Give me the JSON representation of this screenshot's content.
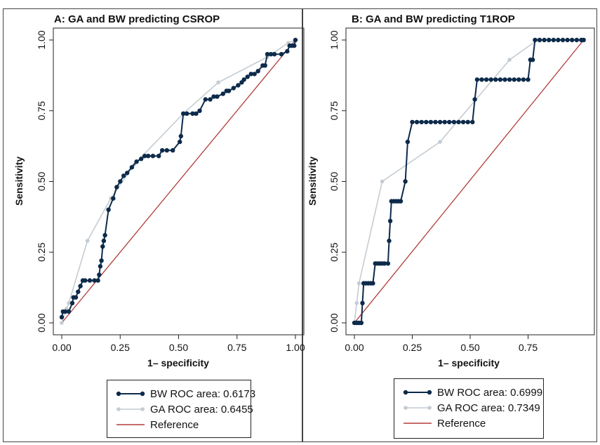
{
  "colors": {
    "bw": "#0d2a4a",
    "ga": "#c4ccd3",
    "reference": "#b23b3b",
    "frame": "#444444"
  },
  "chart_data": [
    {
      "type": "line",
      "title": "A: GA and BW predicting CSROP",
      "xlabel": "1– specificity",
      "ylabel": "Sensitivity",
      "xlim": [
        0,
        1
      ],
      "ylim": [
        0,
        1
      ],
      "xticks": [
        "0.00",
        "0.25",
        "0.50",
        "0.75",
        "1.00"
      ],
      "yticks": [
        "0.00",
        "0.25",
        "0.50",
        "0.75",
        "1.00"
      ],
      "legend": {
        "placement": "bottom",
        "entries": [
          "BW ROC area: 0.6173",
          "GA ROC area: 0.6455",
          "Reference"
        ]
      },
      "series": [
        {
          "name": "BW ROC area: 0.6173",
          "color_key": "bw",
          "x": [
            0,
            0.005,
            0.015,
            0.03,
            0.045,
            0.05,
            0.06,
            0.07,
            0.08,
            0.09,
            0.1,
            0.12,
            0.14,
            0.155,
            0.16,
            0.165,
            0.17,
            0.175,
            0.18,
            0.185,
            0.2,
            0.22,
            0.235,
            0.25,
            0.265,
            0.28,
            0.3,
            0.32,
            0.34,
            0.355,
            0.37,
            0.39,
            0.415,
            0.43,
            0.45,
            0.475,
            0.505,
            0.51,
            0.52,
            0.535,
            0.56,
            0.575,
            0.59,
            0.615,
            0.635,
            0.65,
            0.665,
            0.69,
            0.705,
            0.715,
            0.735,
            0.755,
            0.77,
            0.78,
            0.795,
            0.81,
            0.825,
            0.84,
            0.86,
            0.87,
            0.88,
            0.895,
            0.91,
            0.94,
            0.965,
            0.975,
            0.985,
            0.995,
            1.0
          ],
          "y": [
            0.02,
            0.04,
            0.04,
            0.04,
            0.07,
            0.09,
            0.09,
            0.11,
            0.13,
            0.15,
            0.15,
            0.15,
            0.15,
            0.15,
            0.17,
            0.2,
            0.22,
            0.27,
            0.29,
            0.31,
            0.4,
            0.44,
            0.48,
            0.5,
            0.52,
            0.53,
            0.55,
            0.57,
            0.58,
            0.59,
            0.59,
            0.59,
            0.59,
            0.61,
            0.61,
            0.61,
            0.64,
            0.66,
            0.74,
            0.74,
            0.74,
            0.74,
            0.75,
            0.79,
            0.79,
            0.8,
            0.8,
            0.81,
            0.82,
            0.82,
            0.83,
            0.84,
            0.85,
            0.86,
            0.87,
            0.88,
            0.88,
            0.89,
            0.91,
            0.91,
            0.95,
            0.95,
            0.95,
            0.95,
            0.96,
            0.98,
            0.98,
            0.98,
            1.0
          ]
        },
        {
          "name": "GA ROC area: 0.6455",
          "color_key": "ga",
          "x": [
            0,
            0.02,
            0.03,
            0.11,
            0.21,
            0.31,
            0.52,
            0.67,
            0.88,
            0.97,
            1.0
          ],
          "y": [
            0,
            0.05,
            0.07,
            0.29,
            0.44,
            0.56,
            0.74,
            0.85,
            0.94,
            0.99,
            1.0
          ]
        },
        {
          "name": "Reference",
          "color_key": "reference",
          "x": [
            0,
            1
          ],
          "y": [
            0,
            1
          ]
        }
      ]
    },
    {
      "type": "line",
      "title": "B: GA and BW predicting T1ROP",
      "xlabel": "1– specificity",
      "ylabel": "Sensitivity",
      "xlim": [
        0,
        1
      ],
      "ylim": [
        0,
        1
      ],
      "xticks": [
        "0.00",
        "0.25",
        "0.50",
        "0.75"
      ],
      "yticks": [
        "0.00",
        "0.25",
        "0.50",
        "0.75",
        "1.00"
      ],
      "legend": {
        "placement": "bottom",
        "entries": [
          "BW ROC area: 0.6999",
          "GA ROC area: 0.7349",
          "Reference"
        ]
      },
      "series": [
        {
          "name": "BW ROC area: 0.6999",
          "color_key": "bw",
          "x": [
            0,
            0.01,
            0.02,
            0.03,
            0.035,
            0.04,
            0.05,
            0.06,
            0.07,
            0.08,
            0.09,
            0.1,
            0.11,
            0.12,
            0.13,
            0.145,
            0.15,
            0.155,
            0.16,
            0.17,
            0.18,
            0.19,
            0.2,
            0.22,
            0.23,
            0.25,
            0.27,
            0.29,
            0.31,
            0.33,
            0.35,
            0.37,
            0.39,
            0.41,
            0.43,
            0.45,
            0.47,
            0.49,
            0.51,
            0.52,
            0.53,
            0.55,
            0.57,
            0.59,
            0.61,
            0.63,
            0.65,
            0.67,
            0.69,
            0.71,
            0.73,
            0.75,
            0.76,
            0.77,
            0.78,
            0.8,
            0.82,
            0.84,
            0.86,
            0.88,
            0.9,
            0.92,
            0.94,
            0.96,
            0.98,
            0.99
          ],
          "y": [
            0,
            0,
            0,
            0,
            0.07,
            0.14,
            0.14,
            0.14,
            0.14,
            0.14,
            0.21,
            0.21,
            0.21,
            0.21,
            0.21,
            0.21,
            0.29,
            0.36,
            0.43,
            0.43,
            0.43,
            0.43,
            0.43,
            0.5,
            0.64,
            0.71,
            0.71,
            0.71,
            0.71,
            0.71,
            0.71,
            0.71,
            0.71,
            0.71,
            0.71,
            0.71,
            0.71,
            0.71,
            0.71,
            0.79,
            0.86,
            0.86,
            0.86,
            0.86,
            0.86,
            0.86,
            0.86,
            0.86,
            0.86,
            0.86,
            0.86,
            0.86,
            0.93,
            0.93,
            1.0,
            1.0,
            1.0,
            1.0,
            1.0,
            1.0,
            1.0,
            1.0,
            1.0,
            1.0,
            1.0,
            1.0
          ]
        },
        {
          "name": "GA ROC area: 0.7349",
          "color_key": "ga",
          "x": [
            0,
            0.01,
            0.02,
            0.12,
            0.37,
            0.67,
            0.79,
            0.99
          ],
          "y": [
            0,
            0.07,
            0.14,
            0.5,
            0.64,
            0.93,
            1.0,
            1.0
          ]
        },
        {
          "name": "Reference",
          "color_key": "reference",
          "x": [
            0,
            0.99
          ],
          "y": [
            0,
            1.0
          ]
        }
      ]
    }
  ]
}
